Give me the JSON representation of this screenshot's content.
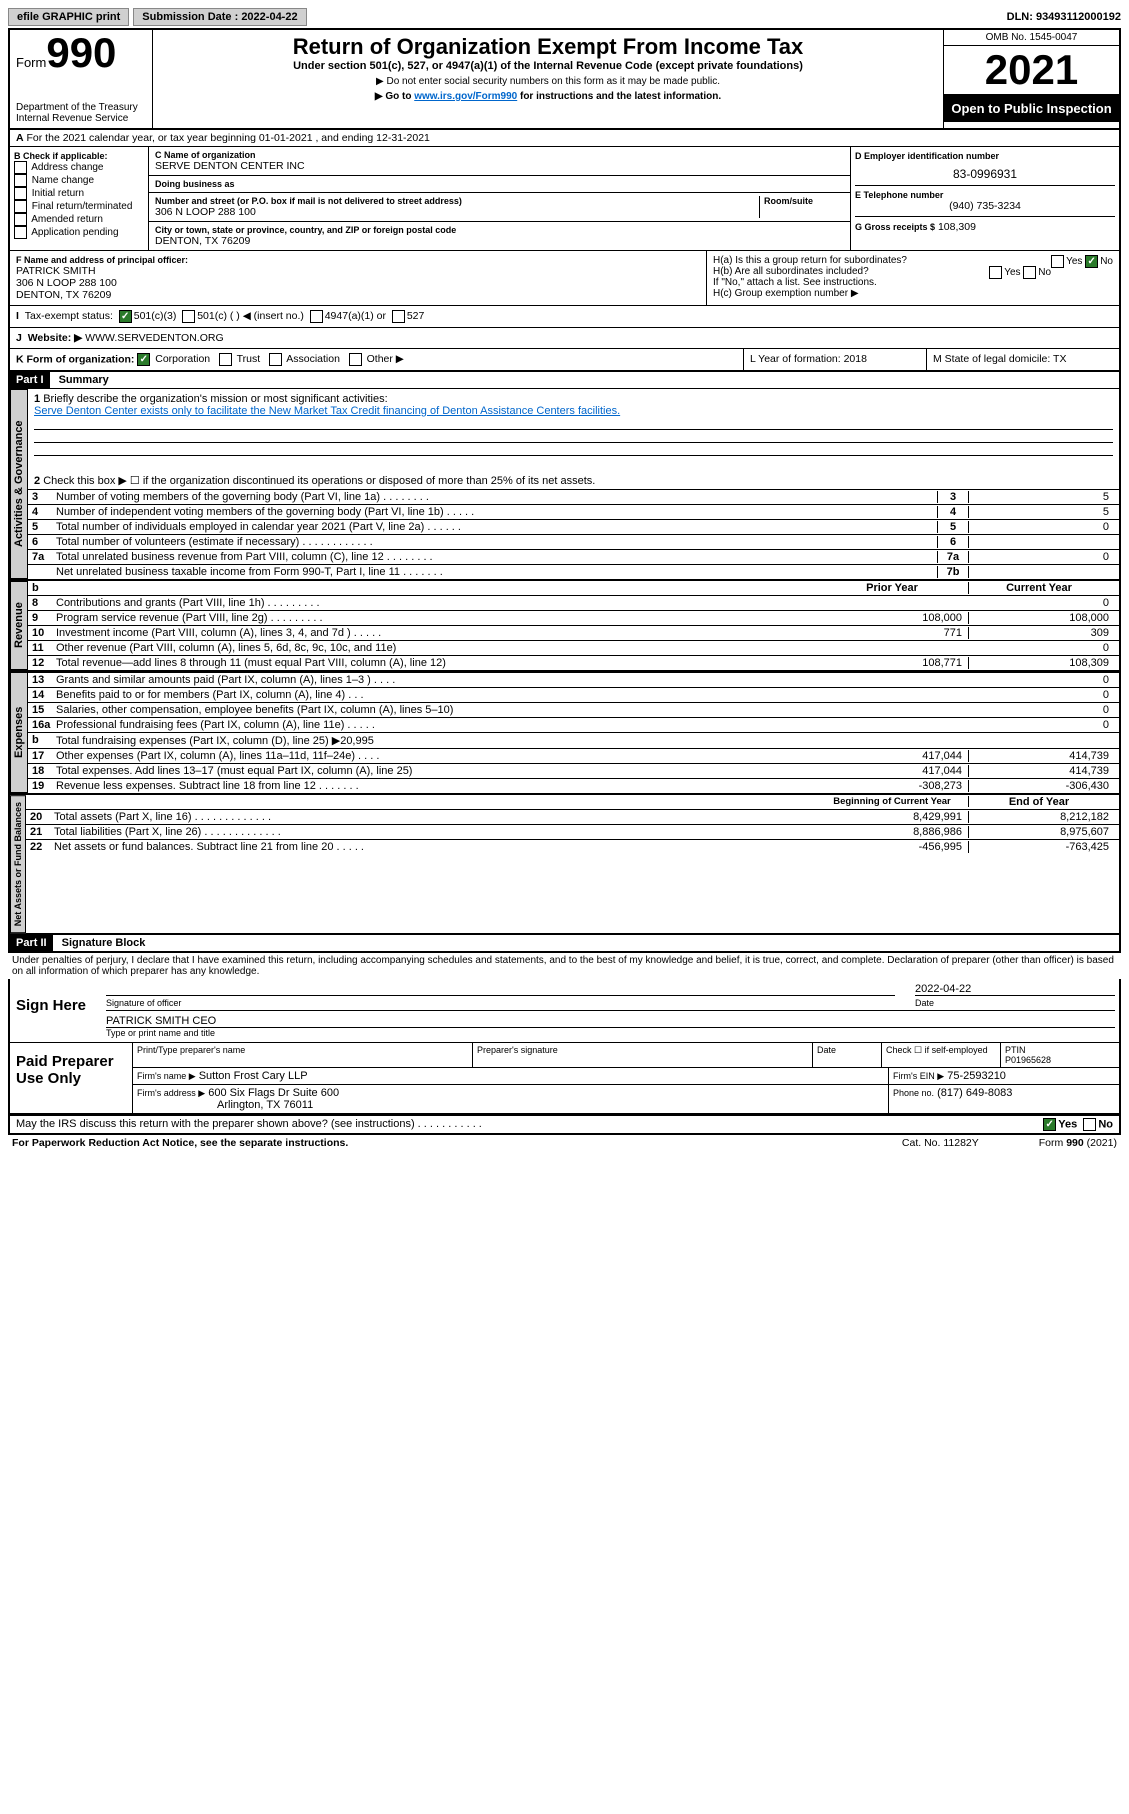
{
  "topbar": {
    "efile": "efile GRAPHIC print",
    "submission_label": "Submission Date : 2022-04-22",
    "dln": "DLN: 93493112000192"
  },
  "header": {
    "form_prefix": "Form",
    "form_num": "990",
    "dept": "Department of the Treasury",
    "irs": "Internal Revenue Service",
    "title": "Return of Organization Exempt From Income Tax",
    "subtitle": "Under section 501(c), 527, or 4947(a)(1) of the Internal Revenue Code (except private foundations)",
    "note1": "▶ Do not enter social security numbers on this form as it may be made public.",
    "note2_pre": "▶ Go to ",
    "note2_link": "www.irs.gov/Form990",
    "note2_post": " for instructions and the latest information.",
    "omb": "OMB No. 1545-0047",
    "year": "2021",
    "open": "Open to Public Inspection"
  },
  "line_a": "For the 2021 calendar year, or tax year beginning 01-01-2021   , and ending 12-31-2021",
  "box_b": {
    "label": "B Check if applicable:",
    "items": [
      "Address change",
      "Name change",
      "Initial return",
      "Final return/terminated",
      "Amended return",
      "Application pending"
    ]
  },
  "box_c": {
    "name_label": "C Name of organization",
    "name": "SERVE DENTON CENTER INC",
    "dba_label": "Doing business as",
    "dba": "",
    "addr_label": "Number and street (or P.O. box if mail is not delivered to street address)",
    "room_label": "Room/suite",
    "addr": "306 N LOOP 288 100",
    "city_label": "City or town, state or province, country, and ZIP or foreign postal code",
    "city": "DENTON, TX  76209"
  },
  "box_d": {
    "label": "D Employer identification number",
    "value": "83-0996931"
  },
  "box_e": {
    "label": "E Telephone number",
    "value": "(940) 735-3234"
  },
  "box_g": {
    "label": "G Gross receipts $",
    "value": "108,309"
  },
  "box_f": {
    "label": "F Name and address of principal officer:",
    "name": "PATRICK SMITH",
    "addr1": "306 N LOOP 288 100",
    "addr2": "DENTON, TX  76209"
  },
  "box_h": {
    "ha": "H(a)  Is this a group return for subordinates?",
    "hb": "H(b)  Are all subordinates included?",
    "hb_note": "If \"No,\" attach a list. See instructions.",
    "hc": "H(c)  Group exemption number ▶",
    "yes": "Yes",
    "no": "No"
  },
  "box_i": {
    "label": "Tax-exempt status:",
    "opt1": "501(c)(3)",
    "opt2": "501(c) (   ) ◀ (insert no.)",
    "opt3": "4947(a)(1) or",
    "opt4": "527"
  },
  "box_j": {
    "label": "Website: ▶",
    "value": "WWW.SERVEDENTON.ORG"
  },
  "box_k": {
    "label": "K Form of organization:",
    "opts": [
      "Corporation",
      "Trust",
      "Association",
      "Other ▶"
    ]
  },
  "box_l": {
    "label": "L Year of formation: 2018"
  },
  "box_m": {
    "label": "M State of legal domicile: TX"
  },
  "part1": {
    "hdr": "Part I",
    "title": "Summary"
  },
  "summary": {
    "q1_label": "Briefly describe the organization's mission or most significant activities:",
    "q1_text": "Serve Denton Center exists only to facilitate the New Market Tax Credit financing of Denton Assistance Centers facilities.",
    "q2": "Check this box ▶ ☐  if the organization discontinued its operations or disposed of more than 25% of its net assets.",
    "lines_top": [
      {
        "n": "3",
        "t": "Number of voting members of the governing body (Part VI, line 1a)   .   .   .   .   .   .   .   .",
        "b": "3",
        "v": "5"
      },
      {
        "n": "4",
        "t": "Number of independent voting members of the governing body (Part VI, line 1b)   .   .   .   .   .",
        "b": "4",
        "v": "5"
      },
      {
        "n": "5",
        "t": "Total number of individuals employed in calendar year 2021 (Part V, line 2a)   .   .   .   .   .   .",
        "b": "5",
        "v": "0"
      },
      {
        "n": "6",
        "t": "Total number of volunteers (estimate if necessary)   .   .   .   .   .   .   .   .   .   .   .   .",
        "b": "6",
        "v": ""
      },
      {
        "n": "7a",
        "t": "Total unrelated business revenue from Part VIII, column (C), line 12   .   .   .   .   .   .   .   .",
        "b": "7a",
        "v": "0"
      },
      {
        "n": "",
        "t": "Net unrelated business taxable income from Form 990-T, Part I, line 11   .   .   .   .   .   .   .",
        "b": "7b",
        "v": ""
      }
    ],
    "col_hdr_prior": "Prior Year",
    "col_hdr_current": "Current Year",
    "revenue": [
      {
        "n": "8",
        "t": "Contributions and grants (Part VIII, line 1h)   .   .   .   .   .   .   .   .   .",
        "p": "",
        "c": "0"
      },
      {
        "n": "9",
        "t": "Program service revenue (Part VIII, line 2g)   .   .   .   .   .   .   .   .   .",
        "p": "108,000",
        "c": "108,000"
      },
      {
        "n": "10",
        "t": "Investment income (Part VIII, column (A), lines 3, 4, and 7d )   .   .   .   .   .",
        "p": "771",
        "c": "309"
      },
      {
        "n": "11",
        "t": "Other revenue (Part VIII, column (A), lines 5, 6d, 8c, 9c, 10c, and 11e)",
        "p": "",
        "c": "0"
      },
      {
        "n": "12",
        "t": "Total revenue—add lines 8 through 11 (must equal Part VIII, column (A), line 12)",
        "p": "108,771",
        "c": "108,309"
      }
    ],
    "expenses": [
      {
        "n": "13",
        "t": "Grants and similar amounts paid (Part IX, column (A), lines 1–3 )   .   .   .   .",
        "p": "",
        "c": "0"
      },
      {
        "n": "14",
        "t": "Benefits paid to or for members (Part IX, column (A), line 4)   .   .   .",
        "p": "",
        "c": "0"
      },
      {
        "n": "15",
        "t": "Salaries, other compensation, employee benefits (Part IX, column (A), lines 5–10)",
        "p": "",
        "c": "0"
      },
      {
        "n": "16a",
        "t": "Professional fundraising fees (Part IX, column (A), line 11e)   .   .   .   .   .",
        "p": "",
        "c": "0"
      },
      {
        "n": "b",
        "t": "Total fundraising expenses (Part IX, column (D), line 25) ▶20,995",
        "p": "",
        "c": "",
        "shaded": true
      },
      {
        "n": "17",
        "t": "Other expenses (Part IX, column (A), lines 11a–11d, 11f–24e)   .   .   .   .",
        "p": "417,044",
        "c": "414,739"
      },
      {
        "n": "18",
        "t": "Total expenses. Add lines 13–17 (must equal Part IX, column (A), line 25)",
        "p": "417,044",
        "c": "414,739"
      },
      {
        "n": "19",
        "t": "Revenue less expenses. Subtract line 18 from line 12   .   .   .   .   .   .   .",
        "p": "-308,273",
        "c": "-306,430"
      }
    ],
    "col_hdr_begin": "Beginning of Current Year",
    "col_hdr_end": "End of Year",
    "netassets": [
      {
        "n": "20",
        "t": "Total assets (Part X, line 16)   .   .   .   .   .   .   .   .   .   .   .   .   .",
        "p": "8,429,991",
        "c": "8,212,182"
      },
      {
        "n": "21",
        "t": "Total liabilities (Part X, line 26)   .   .   .   .   .   .   .   .   .   .   .   .   .",
        "p": "8,886,986",
        "c": "8,975,607"
      },
      {
        "n": "22",
        "t": "Net assets or fund balances. Subtract line 21 from line 20   .   .   .   .   .",
        "p": "-456,995",
        "c": "-763,425"
      }
    ]
  },
  "tabs": {
    "gov": "Activities & Governance",
    "rev": "Revenue",
    "exp": "Expenses",
    "net": "Net Assets or Fund Balances"
  },
  "part2": {
    "hdr": "Part II",
    "title": "Signature Block"
  },
  "sig": {
    "penalty": "Under penalties of perjury, I declare that I have examined this return, including accompanying schedules and statements, and to the best of my knowledge and belief, it is true, correct, and complete. Declaration of preparer (other than officer) is based on all information of which preparer has any knowledge.",
    "sign_here": "Sign Here",
    "sig_officer": "Signature of officer",
    "date": "Date",
    "date_val": "2022-04-22",
    "name_title": "PATRICK SMITH CEO",
    "type_name": "Type or print name and title",
    "paid": "Paid Preparer Use Only",
    "prep_name_label": "Print/Type preparer's name",
    "prep_sig_label": "Preparer's signature",
    "check_self": "Check ☐ if self-employed",
    "ptin_label": "PTIN",
    "ptin": "P01965628",
    "firm_name_label": "Firm's name    ▶",
    "firm_name": "Sutton Frost Cary LLP",
    "firm_ein_label": "Firm's EIN ▶",
    "firm_ein": "75-2593210",
    "firm_addr_label": "Firm's address ▶",
    "firm_addr1": "600 Six Flags Dr Suite 600",
    "firm_addr2": "Arlington, TX  76011",
    "phone_label": "Phone no.",
    "phone": "(817) 649-8083"
  },
  "footer": {
    "discuss": "May the IRS discuss this return with the preparer shown above? (see instructions)   .   .   .   .   .   .   .   .   .   .   .",
    "yes": "Yes",
    "no": "No",
    "paperwork": "For Paperwork Reduction Act Notice, see the separate instructions.",
    "cat": "Cat. No. 11282Y",
    "form": "Form 990 (2021)"
  }
}
